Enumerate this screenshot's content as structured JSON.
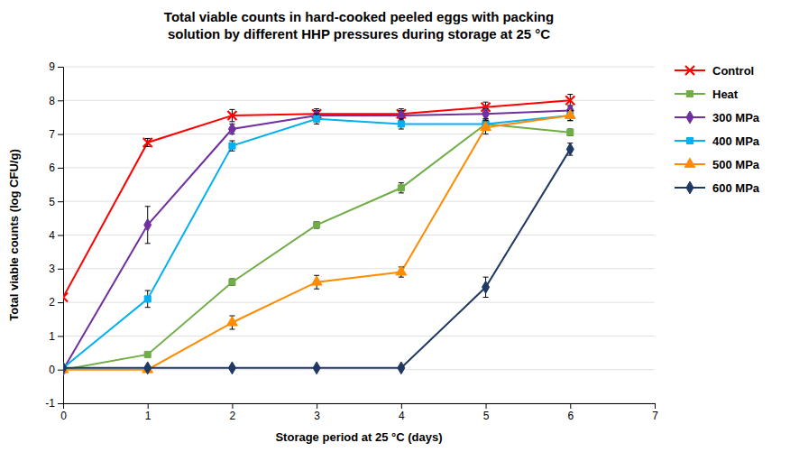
{
  "chart_data": {
    "type": "line",
    "title": "Total viable counts in hard-cooked peeled eggs with packing\nsolution by different HHP pressures during storage at 25 °C",
    "x_label": "Storage period at 25 °C (days)",
    "y_label": "Total viable counts (log CFU/g)",
    "xlim": [
      0,
      7
    ],
    "ylim": [
      -1,
      9
    ],
    "xticks": [
      0,
      1,
      2,
      3,
      4,
      5,
      6,
      7
    ],
    "yticks": [
      -1,
      0,
      1,
      2,
      3,
      4,
      5,
      6,
      7,
      8,
      9
    ],
    "grid": true,
    "legend": "right",
    "x": [
      0,
      1,
      2,
      3,
      4,
      5,
      6
    ],
    "series": [
      {
        "name": "Control",
        "color": "#FF0000",
        "marker": "x",
        "values": [
          2.15,
          6.75,
          7.55,
          7.6,
          7.6,
          7.8,
          8.0
        ],
        "errors": [
          0.05,
          0.12,
          0.18,
          0.15,
          0.15,
          0.15,
          0.18
        ]
      },
      {
        "name": "Heat",
        "color": "#70AD47",
        "marker": "square",
        "values": [
          0.0,
          0.45,
          2.6,
          4.3,
          5.4,
          7.3,
          7.05
        ],
        "errors": [
          0.05,
          0.05,
          0.1,
          0.1,
          0.15,
          0.1,
          0.1
        ]
      },
      {
        "name": "300 MPa",
        "color": "#7030A0",
        "marker": "diamond",
        "values": [
          0.0,
          4.3,
          7.15,
          7.55,
          7.55,
          7.6,
          7.7
        ],
        "errors": [
          0.05,
          0.55,
          0.15,
          0.15,
          0.15,
          0.15,
          0.15
        ]
      },
      {
        "name": "400 MPa",
        "color": "#00B0F0",
        "marker": "square",
        "values": [
          0.05,
          2.1,
          6.65,
          7.45,
          7.3,
          7.3,
          7.55
        ],
        "errors": [
          0.05,
          0.25,
          0.15,
          0.15,
          0.15,
          0.15,
          0.15
        ]
      },
      {
        "name": "500 MPa",
        "color": "#FF8C00",
        "marker": "triangle",
        "values": [
          0.0,
          0.0,
          1.4,
          2.6,
          2.9,
          7.2,
          7.55
        ],
        "errors": [
          0.05,
          0.05,
          0.2,
          0.2,
          0.15,
          0.2,
          0.15
        ]
      },
      {
        "name": "600 MPa",
        "color": "#1F3864",
        "marker": "diamond",
        "values": [
          0.05,
          0.05,
          0.05,
          0.05,
          0.05,
          2.45,
          6.55
        ],
        "errors": [
          0.05,
          0.05,
          0.05,
          0.05,
          0.05,
          0.3,
          0.18
        ]
      }
    ]
  }
}
